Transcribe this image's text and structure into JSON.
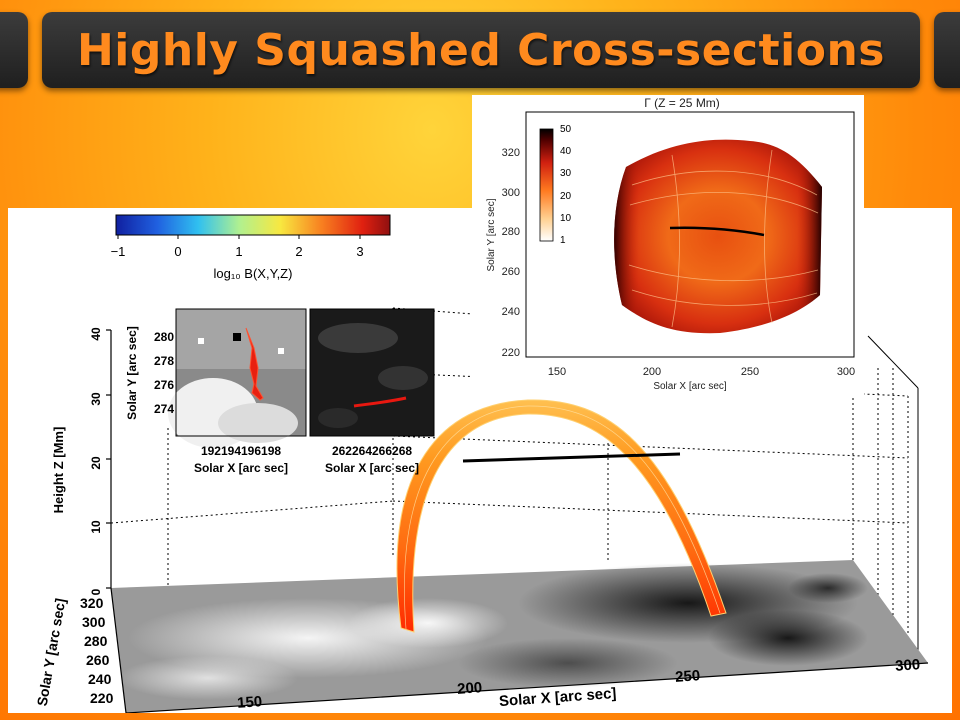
{
  "slide": {
    "title": "Highly Squashed Cross-sections"
  },
  "colorbar": {
    "ticks": [
      "−1",
      "0",
      "1",
      "2",
      "3"
    ],
    "label": "log₁₀ B(X,Y,Z)"
  },
  "small_panels": {
    "left": {
      "ylabel": "Solar Y [arc sec]",
      "yticks": [
        "280",
        "278",
        "276",
        "274"
      ],
      "xticks": "192194196198",
      "xlabel": "Solar X [arc sec]"
    },
    "right": {
      "xticks": "262264266268",
      "xlabel": "Solar X [arc sec]"
    }
  },
  "main_plot": {
    "zlabel": "Height Z [Mm]",
    "zticks": [
      "40",
      "30",
      "20",
      "10",
      "0"
    ],
    "ylabel": "Solar Y [arc sec]",
    "yticks": [
      "320",
      "300",
      "280",
      "260",
      "240",
      "220"
    ],
    "xlabel": "Solar X [arc sec]",
    "xticks": [
      "150",
      "200",
      "250",
      "300"
    ]
  },
  "inset": {
    "title": "Γ (Z = 25 Mm)",
    "xlabel": "Solar X [arc sec]",
    "ylabel": "Solar Y [arc sec]",
    "xticks": [
      "150",
      "200",
      "250",
      "300"
    ],
    "yticks": [
      "320",
      "300",
      "280",
      "260",
      "240",
      "220"
    ],
    "colorbar_ticks": [
      "50",
      "40",
      "30",
      "20",
      "10",
      "1"
    ]
  },
  "colors": {
    "title_text": "#ff8a1e",
    "title_bar": "#2a2a2a",
    "slide_background": "#ff9a10",
    "loop_bottom": "#ff3a00",
    "loop_top": "#ffb030",
    "cross_section_line": "#000000"
  }
}
